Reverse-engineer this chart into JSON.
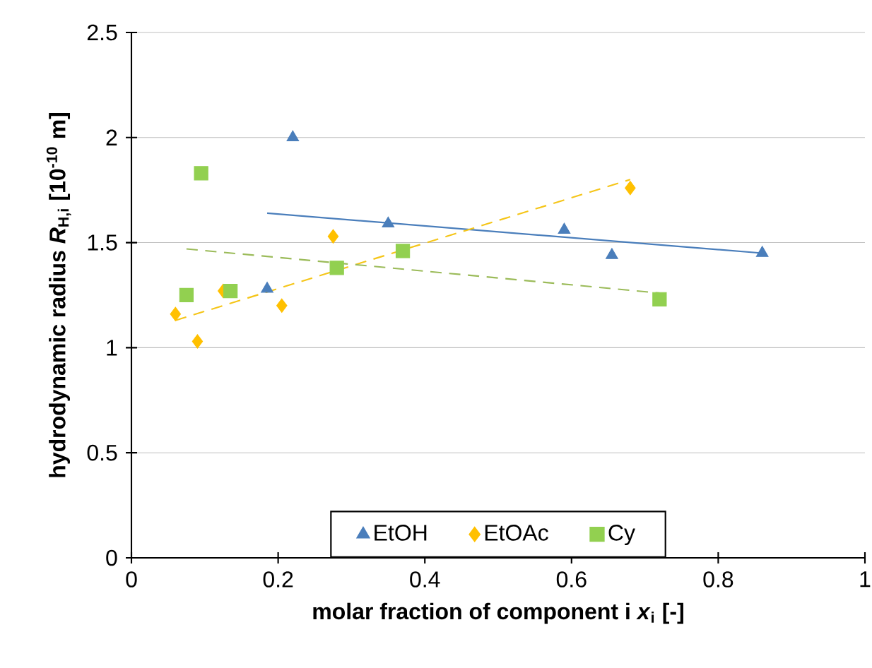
{
  "chart_data": {
    "type": "scatter",
    "xlabel": "molar fraction of component i *x*$_{i}$   [-]",
    "ylabel": "hydrodynamic radius *R*$_{H,i}$   [10$^{-10}$ m]",
    "xlim": [
      0,
      1
    ],
    "ylim": [
      0,
      2.5
    ],
    "xticks": [
      0,
      0.2,
      0.4,
      0.6,
      0.8,
      1
    ],
    "yticks": [
      0,
      0.5,
      1,
      1.5,
      2,
      2.5
    ],
    "grid": "y",
    "legend": "bottom",
    "series": [
      {
        "name": "EtOH",
        "color": "#4a7ebb",
        "marker": "triangle",
        "x": [
          0.22,
          0.185,
          0.35,
          0.59,
          0.655,
          0.86
        ],
        "values": [
          2.0,
          1.28,
          1.59,
          1.56,
          1.44,
          1.45
        ]
      },
      {
        "name": "EtOAc",
        "color": "#ffc000",
        "marker": "diamond",
        "x": [
          0.06,
          0.09,
          0.125,
          0.205,
          0.275,
          0.68
        ],
        "values": [
          1.16,
          1.03,
          1.27,
          1.2,
          1.53,
          1.76
        ]
      },
      {
        "name": "Cy",
        "color": "#92d050",
        "marker": "square",
        "x": [
          0.075,
          0.095,
          0.135,
          0.28,
          0.37,
          0.72
        ],
        "values": [
          1.25,
          1.83,
          1.27,
          1.38,
          1.46,
          1.23
        ]
      },
      {
        "type": "line",
        "color": "#4a7ebb",
        "line_style": "solid",
        "x": [
          0.185,
          0.86
        ],
        "values": [
          1.64,
          1.45
        ]
      },
      {
        "type": "line",
        "color": "#f5c518",
        "line_style": "dashed",
        "x": [
          0.06,
          0.68
        ],
        "values": [
          1.13,
          1.8
        ]
      },
      {
        "type": "line",
        "color": "#9bbb59",
        "line_style": "dashed",
        "x": [
          0.075,
          0.72
        ],
        "values": [
          1.47,
          1.26
        ]
      }
    ]
  }
}
